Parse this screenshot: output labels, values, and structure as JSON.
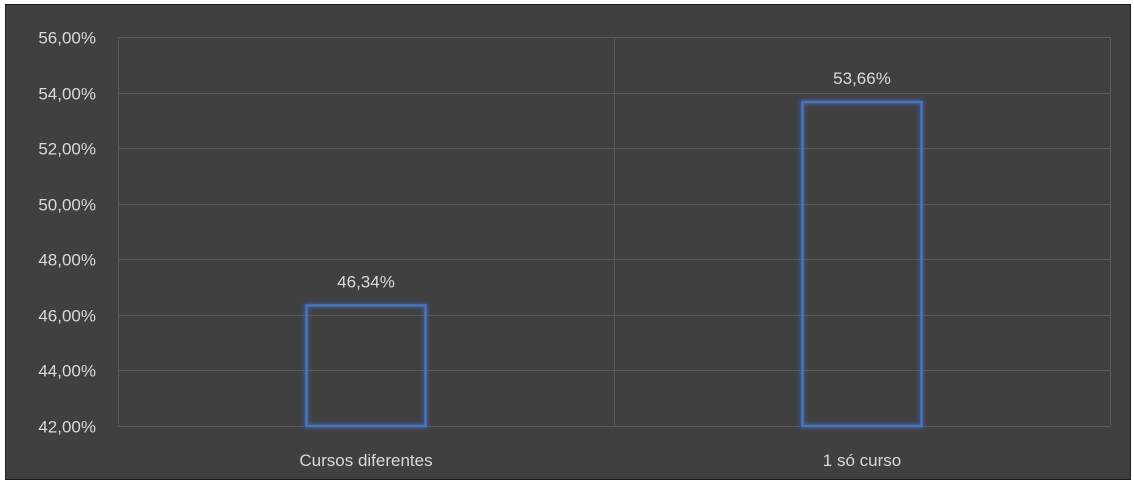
{
  "chart_data": {
    "type": "bar",
    "categories": [
      "Cursos diferentes",
      "1 só curso"
    ],
    "values": [
      46.34,
      53.66
    ],
    "data_labels": [
      "46,34%",
      "53,66%"
    ],
    "ylim": [
      42,
      56
    ],
    "yticks": [
      42,
      44,
      46,
      48,
      50,
      52,
      54,
      56
    ],
    "ytick_labels": [
      "42,00%",
      "44,00%",
      "46,00%",
      "48,00%",
      "50,00%",
      "52,00%",
      "54,00%",
      "56,00%"
    ],
    "grid": true,
    "legend": "none",
    "colors": {
      "background": "#404040",
      "grid": "#5a5a5a",
      "bar_outline": "#4472c4",
      "bar_glow": "#2f5597",
      "text": "#d9d9d9"
    }
  }
}
